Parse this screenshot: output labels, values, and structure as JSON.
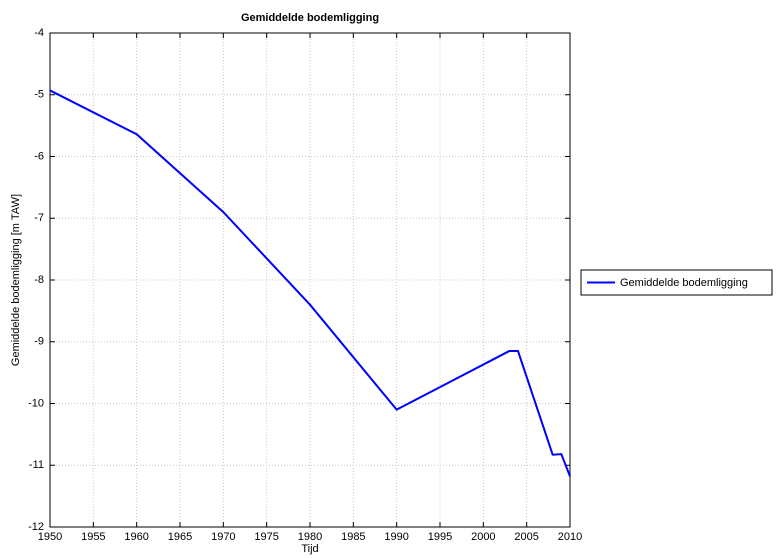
{
  "chart_data": {
    "type": "line",
    "title": "Gemiddelde bodemligging",
    "x_label": "Tijd",
    "y_label": "Gemiddelde bodemligging [m  TAW]",
    "x": [
      1950,
      1960,
      1970,
      1980,
      1990,
      2003,
      2004,
      2008,
      2009,
      2010
    ],
    "series": [
      {
        "name": "Gemiddelde bodemligging",
        "color": "#0000ff",
        "values": [
          -4.93,
          -5.64,
          -6.9,
          -8.4,
          -10.1,
          -9.15,
          -9.15,
          -10.83,
          -10.82,
          -11.18
        ]
      }
    ],
    "xlim": [
      1950,
      2010
    ],
    "xticks": [
      1950,
      1955,
      1960,
      1965,
      1970,
      1975,
      1980,
      1985,
      1990,
      1995,
      2000,
      2005,
      2010
    ],
    "ylim": [
      -12,
      -4
    ],
    "yticks": [
      -12,
      -11,
      -10,
      -9,
      -8,
      -7,
      -6,
      -5,
      -4
    ],
    "grid": true,
    "legend": "outside-right"
  }
}
